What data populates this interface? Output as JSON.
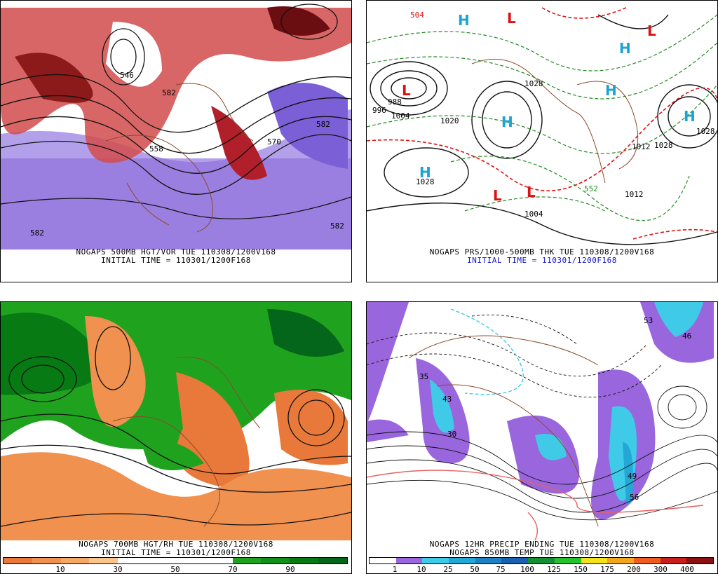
{
  "panels": [
    {
      "id": "hgt-vor",
      "caption1": "NOGAPS 500MB HGT/VOR TUE 110308/1200V168",
      "caption2": "INITIAL TIME = 110301/1200F168",
      "labels": [
        "546",
        "582",
        "582",
        "570",
        "558",
        "582",
        "582"
      ]
    },
    {
      "id": "prs-thk",
      "caption1": "NOGAPS PRS/1000-500MB THK TUE 110308/1200V168",
      "caption2": "INITIAL TIME = 110301/1200F168",
      "caption2_color": "#1111cc",
      "high_symbol": "H",
      "low_symbol": "L",
      "labels": [
        "988",
        "996",
        "1004",
        "1028",
        "1028",
        "1028",
        "1012",
        "1004",
        "1012",
        "1020",
        "1028",
        "504",
        "552"
      ]
    },
    {
      "id": "hgt-rh",
      "caption1": "NOGAPS 700MB HGT/RH TUE 110308/1200V168",
      "caption2": "INITIAL TIME = 110301/1200F168",
      "colorbar": {
        "colors": [
          "#e8793a",
          "#f0914f",
          "#f5a866",
          "#fac58c",
          "#ffffff",
          "#ffffff",
          "#ffffff",
          "#ffffff",
          "#1fa31f",
          "#12901a",
          "#077a14",
          "#04661a"
        ],
        "ticks": [
          "10",
          "30",
          "50",
          "70",
          "90"
        ]
      }
    },
    {
      "id": "precip-temp",
      "caption1": "NOGAPS 12HR PRECIP ENDING TUE 110308/1200V168",
      "caption2": "NOGAPS 850MB TEMP TUE 110308/1200V168",
      "colorbar": {
        "colors": [
          "#ffffff",
          "#9966dd",
          "#3fcbe8",
          "#22a7d6",
          "#1c82c4",
          "#1b5fb0",
          "#148f35",
          "#26c12d",
          "#f3e21b",
          "#f0a71e",
          "#ee5d20",
          "#c81e1e",
          "#8a1212"
        ],
        "ticks": [
          "1",
          "10",
          "25",
          "50",
          "75",
          "100",
          "125",
          "150",
          "175",
          "200",
          "300",
          "400"
        ]
      },
      "labels": [
        "35",
        "43",
        "30",
        "46",
        "53",
        "49",
        "56"
      ]
    }
  ]
}
